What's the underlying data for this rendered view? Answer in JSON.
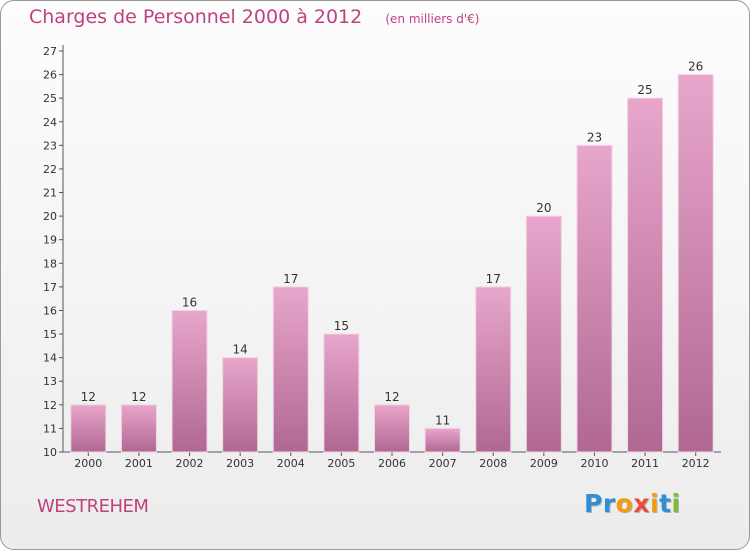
{
  "chart_data": {
    "type": "bar",
    "title": "Charges de Personnel 2000 à 2012",
    "unit_note": "(en milliers d'€)",
    "categories": [
      "2000",
      "2001",
      "2002",
      "2003",
      "2004",
      "2005",
      "2006",
      "2007",
      "2008",
      "2009",
      "2010",
      "2011",
      "2012"
    ],
    "values": [
      12,
      12,
      16,
      14,
      17,
      15,
      12,
      11,
      17,
      20,
      23,
      25,
      26
    ],
    "ylim": [
      10,
      27
    ],
    "yticks": [
      10,
      11,
      12,
      13,
      14,
      15,
      16,
      17,
      18,
      19,
      20,
      21,
      22,
      23,
      24,
      25,
      26,
      27
    ],
    "grid": false,
    "bar_color": "#d98ab6",
    "xlabel": "",
    "ylabel": ""
  },
  "commune": "WESTREHEM",
  "brand": {
    "letters": [
      "P",
      "r",
      "o",
      "x",
      "i",
      "t",
      "i"
    ],
    "colors": [
      "#2f8fd6",
      "#2f8fd6",
      "#f39c12",
      "#e74c3c",
      "#f39c12",
      "#2f8fd6",
      "#7dbb3c"
    ]
  },
  "colors": {
    "accent": "#c0417f",
    "bar_top": "#e8a6cc",
    "bar_bottom": "#b06892"
  }
}
